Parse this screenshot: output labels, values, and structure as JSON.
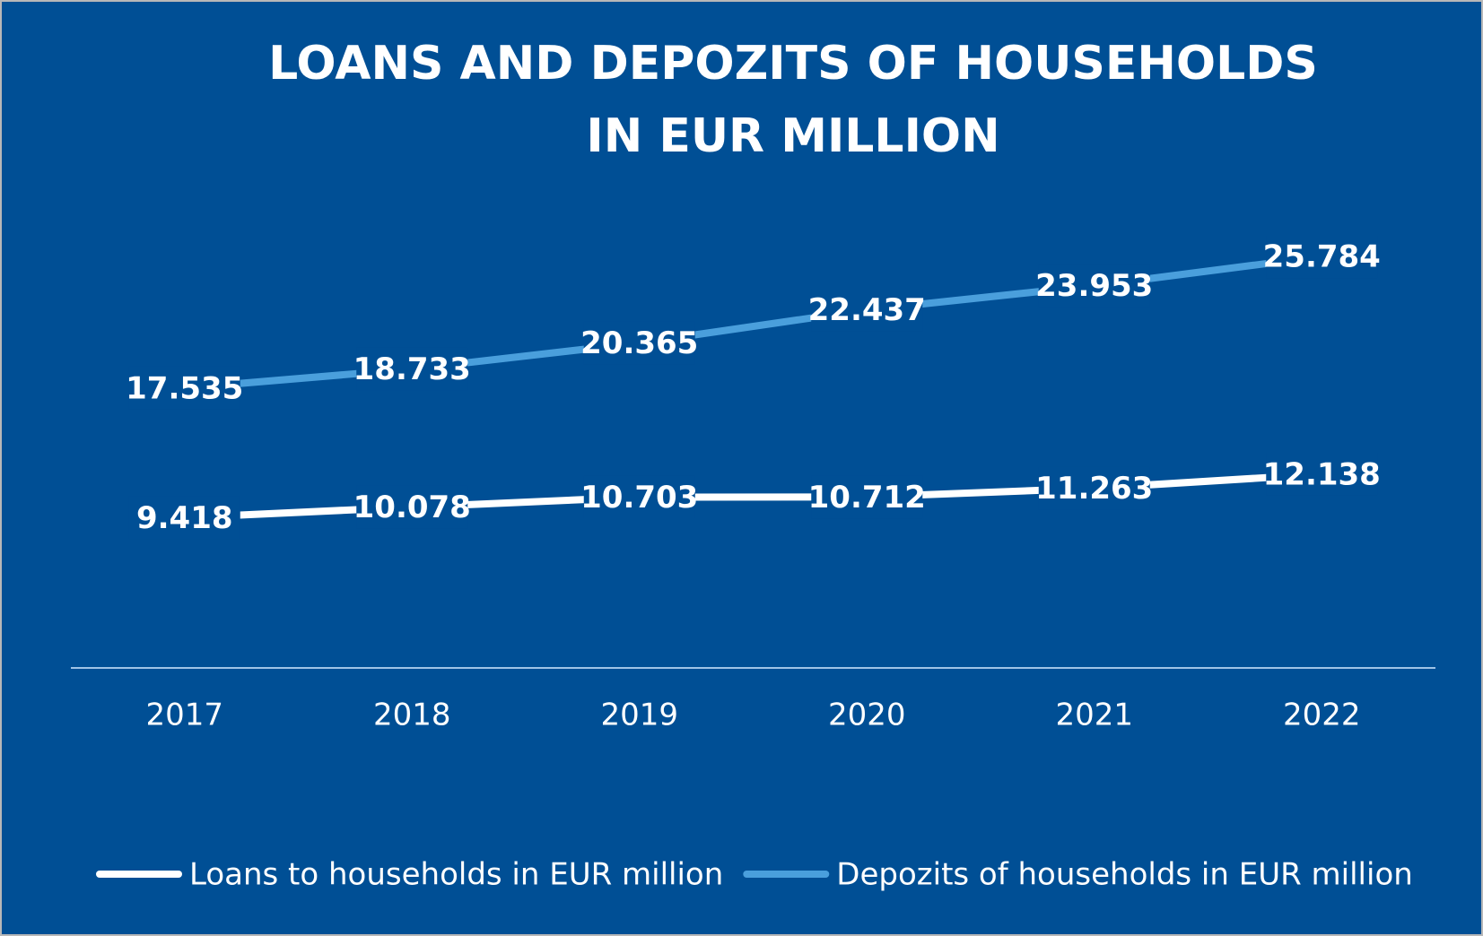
{
  "chart_data": {
    "type": "line",
    "title": [
      "LOANS AND DEPOZITS OF HOUSEHOLDS",
      "IN EUR MILLION"
    ],
    "categories": [
      "2017",
      "2018",
      "2019",
      "2020",
      "2021",
      "2022"
    ],
    "series": [
      {
        "name": "Loans to households in EUR million",
        "color": "#ffffff",
        "values": [
          9418,
          10078,
          10703,
          10712,
          11263,
          12138
        ],
        "value_labels": [
          "9.418",
          "10.078",
          "10.703",
          "10.712",
          "11.263",
          "12.138"
        ]
      },
      {
        "name": "Depozits of households in EUR million",
        "color": "#4a9fdc",
        "values": [
          17535,
          18733,
          20365,
          22437,
          23953,
          25784
        ],
        "value_labels": [
          "17.535",
          "18.733",
          "20.365",
          "22.437",
          "23.953",
          "25.784"
        ]
      }
    ],
    "ylim": [
      0,
      30000
    ],
    "legend": "bottom"
  }
}
